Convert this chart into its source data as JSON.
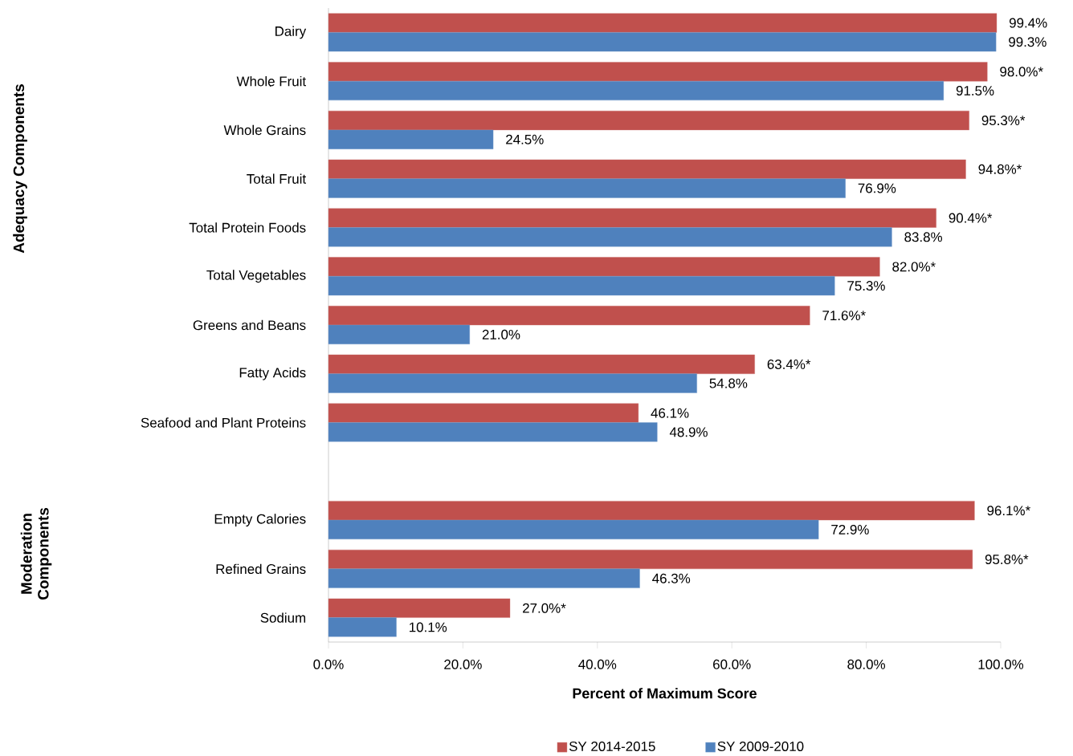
{
  "chart_data": {
    "type": "bar",
    "orientation": "horizontal",
    "xlabel": "Percent of Maximum Score",
    "categories": [
      "Dairy",
      "Whole Fruit",
      "Whole Grains",
      "Total Fruit",
      "Total Protein Foods",
      "Total Vegetables",
      "Greens and Beans",
      "Fatty Acids",
      "Seafood and Plant Proteins",
      null,
      "Empty Calories",
      "Refined Grains",
      "Sodium"
    ],
    "series": [
      {
        "name": "SY 2014-2015",
        "color": "#c0504d",
        "values": [
          99.4,
          98.0,
          95.3,
          94.8,
          90.4,
          82.0,
          71.6,
          63.4,
          46.1,
          null,
          96.1,
          95.8,
          27.0
        ],
        "value_labels": [
          "99.4%",
          "98.0%*",
          "95.3%*",
          "94.8%*",
          "90.4%*",
          "82.0%*",
          "71.6%*",
          "63.4%*",
          "46.1%",
          null,
          "96.1%*",
          "95.8%*",
          "27.0%*"
        ]
      },
      {
        "name": "SY 2009-2010",
        "color": "#4f81bd",
        "values": [
          99.3,
          91.5,
          24.5,
          76.9,
          83.8,
          75.3,
          21.0,
          54.8,
          48.9,
          null,
          72.9,
          46.3,
          10.1
        ],
        "value_labels": [
          "99.3%",
          "91.5%",
          "24.5%",
          "76.9%",
          "83.8%",
          "75.3%",
          "21.0%",
          "54.8%",
          "48.9%",
          null,
          "72.9%",
          "46.3%",
          "10.1%"
        ]
      }
    ],
    "xlim": [
      0,
      100
    ],
    "xticks": [
      {
        "value": 0,
        "label": "0.0%"
      },
      {
        "value": 20,
        "label": "20.0%"
      },
      {
        "value": 40,
        "label": "40.0%"
      },
      {
        "value": 60,
        "label": "60.0%"
      },
      {
        "value": 80,
        "label": "80.0%"
      },
      {
        "value": 100,
        "label": "100.0%"
      }
    ],
    "legend": "bottom",
    "annotations": [
      "Adequacy Components",
      "Moderation Components"
    ]
  }
}
